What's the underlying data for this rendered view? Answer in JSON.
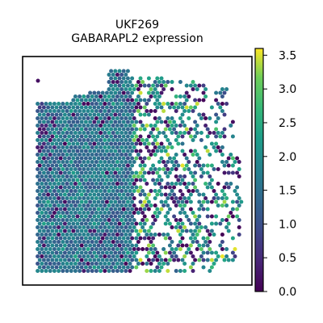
{
  "chart_data": {
    "type": "scatter",
    "title": "UKF269",
    "subtitle": "GABARAPL2 expression",
    "xlabel": "",
    "ylabel": "",
    "colorbar": {
      "cmap": "viridis",
      "vmin": 0.0,
      "vmax": 3.6,
      "ticks": [
        0.0,
        0.5,
        1.0,
        1.5,
        2.0,
        2.5,
        3.0,
        3.5
      ],
      "tick_labels": [
        "0.0",
        "0.5",
        "1.0",
        "1.5",
        "2.0",
        "2.5",
        "3.0",
        "3.5"
      ]
    },
    "grid": false,
    "frame": true,
    "description_hint": "Spatial hexagonal spot scatter; left region dense mid-level expression (~1.0-2.0), right region sparser and more heterogeneous with high (yellow) and low (purple) spots."
  }
}
